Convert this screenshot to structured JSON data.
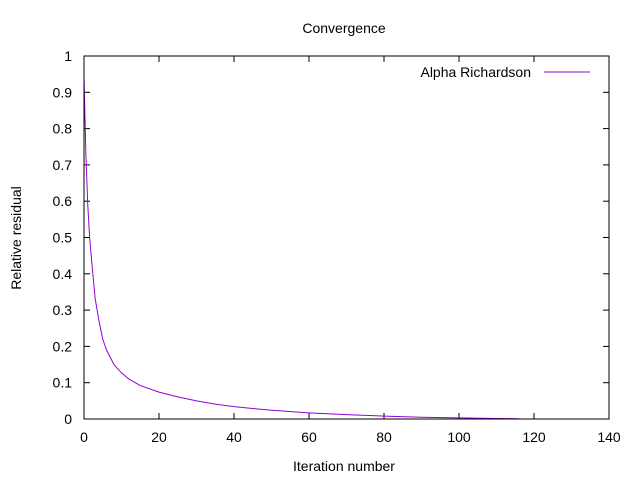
{
  "chart_data": {
    "type": "line",
    "title": "Convergence",
    "xlabel": "Iteration number",
    "ylabel": "Relative residual",
    "xlim": [
      0,
      140
    ],
    "ylim": [
      0,
      1
    ],
    "x_ticks": [
      0,
      20,
      40,
      60,
      80,
      100,
      120,
      140
    ],
    "y_ticks": [
      0,
      0.1,
      0.2,
      0.3,
      0.4,
      0.5,
      0.6,
      0.7,
      0.8,
      0.9,
      1
    ],
    "x_tick_labels": [
      "0",
      "20",
      "40",
      "60",
      "80",
      "100",
      "120",
      "140"
    ],
    "y_tick_labels": [
      "0",
      "0.1",
      "0.2",
      "0.3",
      "0.4",
      "0.5",
      "0.6",
      "0.7",
      "0.8",
      "0.9",
      "1"
    ],
    "grid": false,
    "legend_position": "top-right",
    "series": [
      {
        "name": "Alpha Richardson",
        "color": "#9400d3",
        "x": [
          0,
          0.5,
          1,
          1.5,
          2,
          3,
          4,
          5,
          6,
          8,
          10,
          12,
          15,
          20,
          25,
          30,
          35,
          40,
          50,
          60,
          70,
          80,
          90,
          100,
          110,
          116
        ],
        "y": [
          0.94,
          0.73,
          0.59,
          0.5,
          0.44,
          0.33,
          0.27,
          0.22,
          0.19,
          0.15,
          0.127,
          0.11,
          0.092,
          0.074,
          0.061,
          0.05,
          0.041,
          0.034,
          0.024,
          0.017,
          0.012,
          0.008,
          0.005,
          0.003,
          0.0015,
          0.0008
        ]
      }
    ]
  }
}
